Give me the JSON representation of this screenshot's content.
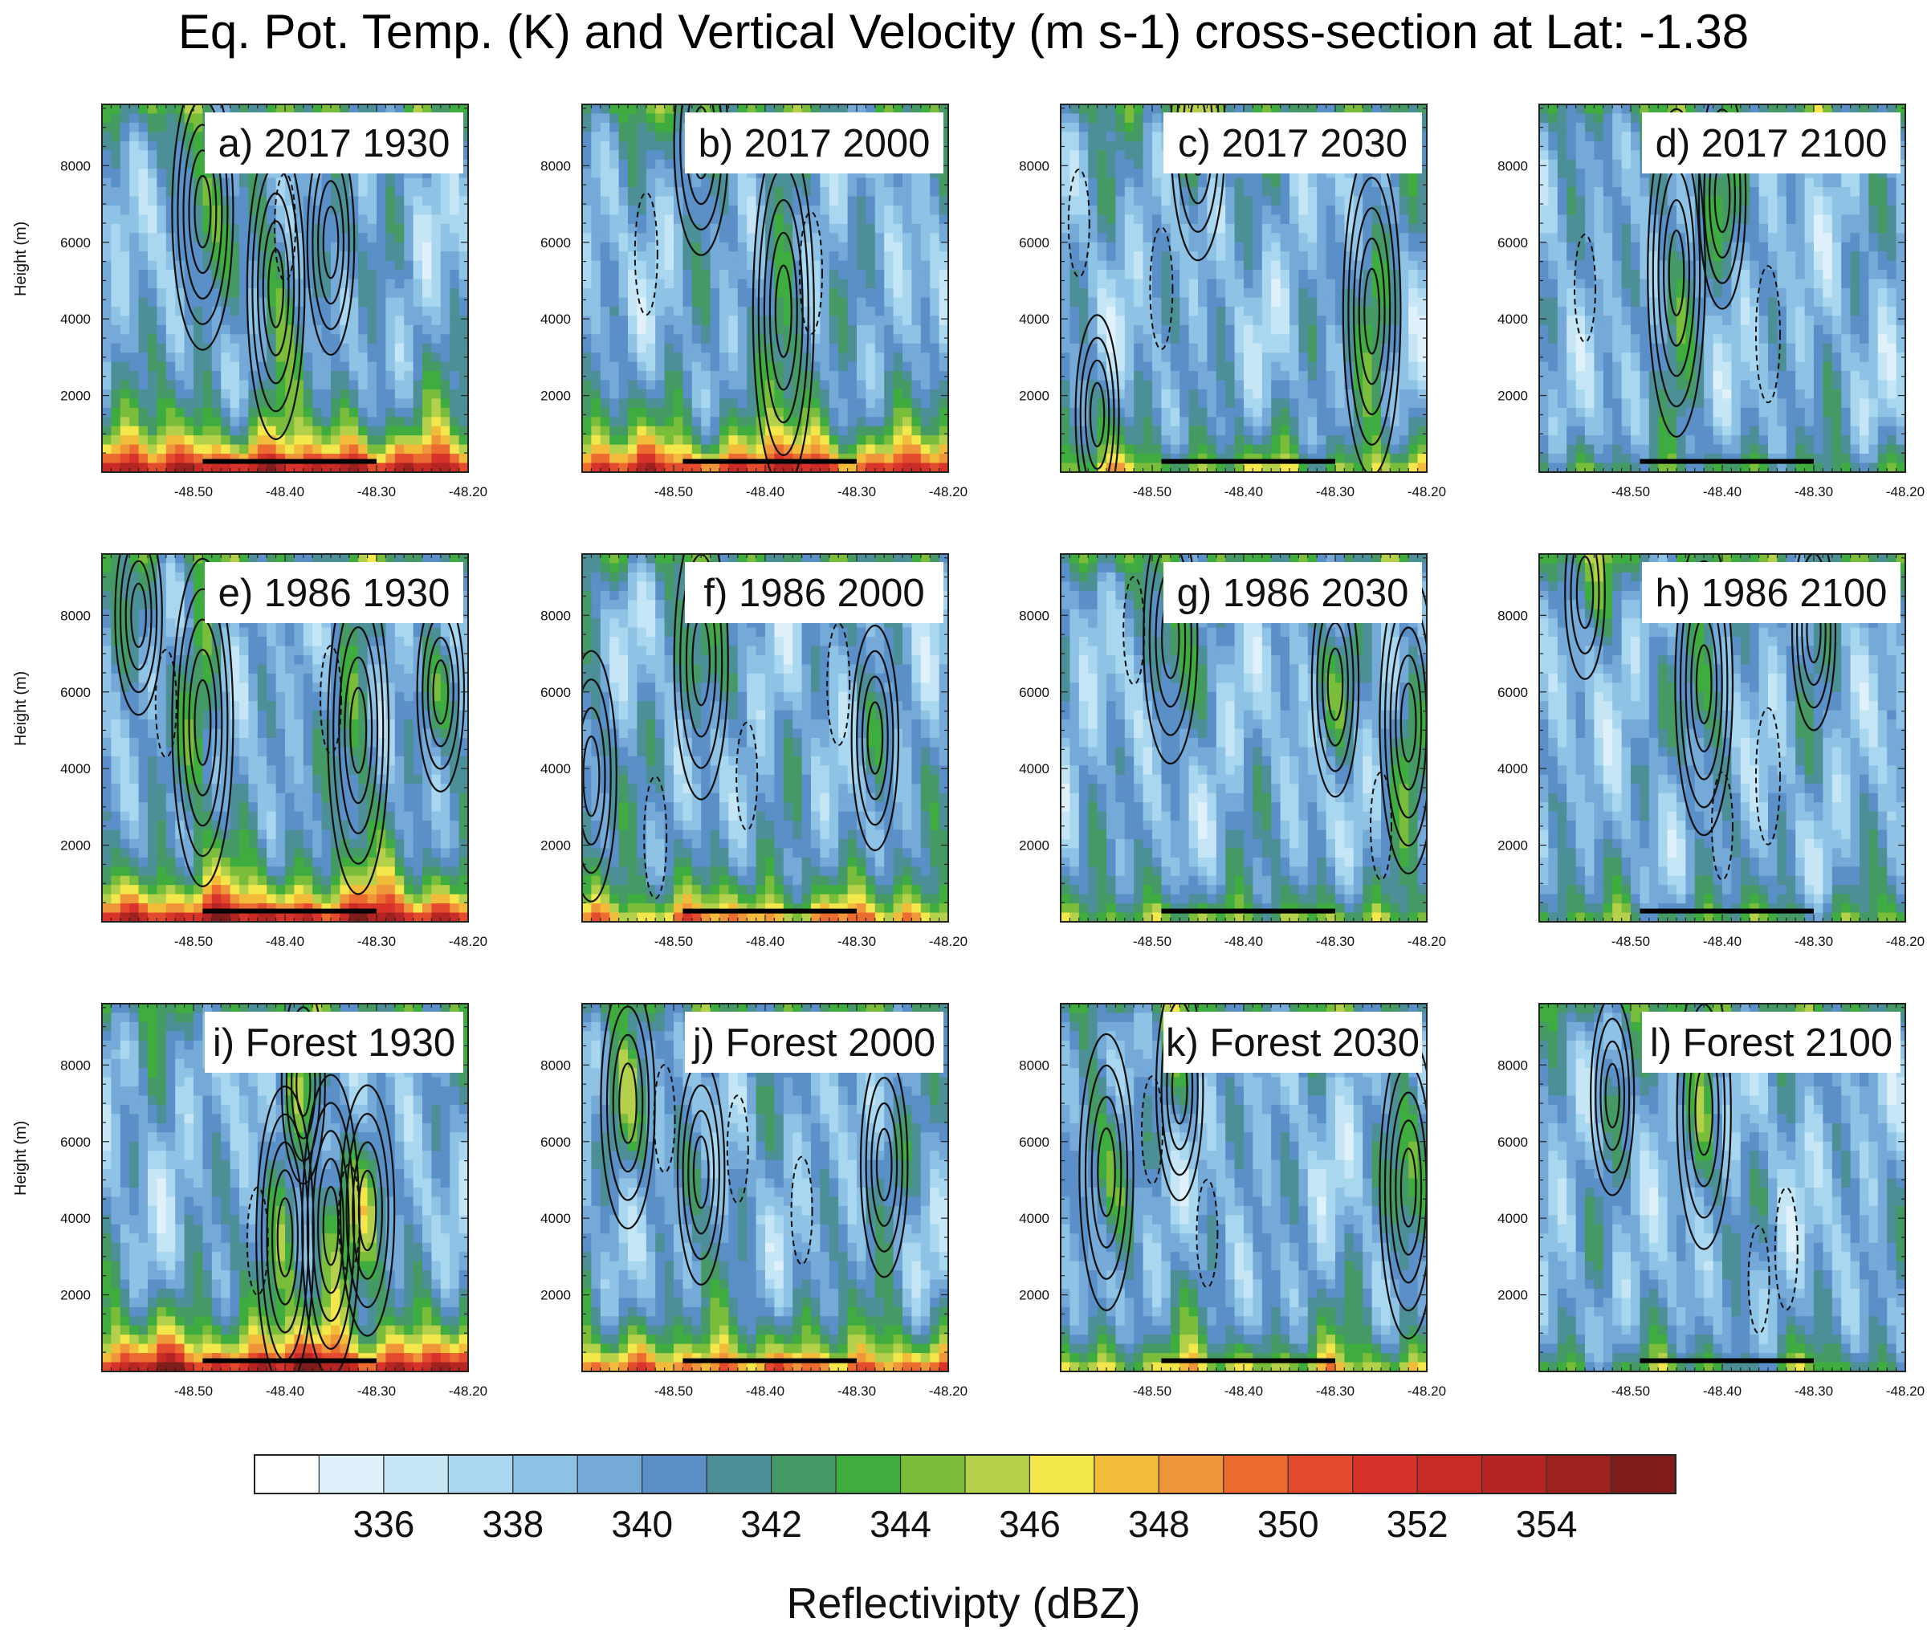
{
  "chart_data": {
    "type": "heatmap",
    "title": "Eq. Pot. Temp. (K) and Vertical Velocity (m s-1) cross-section at Lat: -1.38",
    "xlabel": "",
    "ylabel": "Height (m)",
    "xlim": [
      -48.6,
      -48.2
    ],
    "ylim": [
      0,
      9600
    ],
    "x_ticks": [
      "-48.50",
      "-48.40",
      "-48.30",
      "-48.20"
    ],
    "x_tick_values": [
      -48.5,
      -48.4,
      -48.3,
      -48.2
    ],
    "y_ticks": [
      "2000",
      "4000",
      "6000",
      "8000"
    ],
    "y_tick_values": [
      2000,
      4000,
      6000,
      8000
    ],
    "reference_segment_lon": [
      -48.49,
      -48.3
    ],
    "colorbar": {
      "label": "Reflectivipty (dBZ)",
      "tick_labels": [
        "336",
        "338",
        "340",
        "342",
        "344",
        "346",
        "348",
        "350",
        "352",
        "354"
      ],
      "levels": [
        334,
        335,
        336,
        337,
        338,
        339,
        340,
        341,
        342,
        343,
        344,
        345,
        346,
        347,
        348,
        349,
        350,
        351,
        352,
        353,
        354,
        355,
        356
      ],
      "colors": [
        "#ffffff",
        "#e1f1fb",
        "#c6e6f6",
        "#a9d7ef",
        "#8ec3e6",
        "#74a9d8",
        "#5a8fc8",
        "#4c8f96",
        "#449964",
        "#3fac3f",
        "#79bd3a",
        "#b5d04a",
        "#f3e74b",
        "#f2bc3a",
        "#f0963a",
        "#ec6b30",
        "#e44a2e",
        "#d8332a",
        "#c82a26",
        "#b32422",
        "#9c211f",
        "#7e1d1b"
      ]
    },
    "panels": [
      {
        "label": "a) 2017 1930",
        "scenario": "2017",
        "time": "1930",
        "surface_heat": 1.0,
        "updrafts": [
          [
            -48.49,
            6800,
            0.7,
            1.0
          ],
          [
            -48.41,
            4800,
            0.8,
            0.9
          ],
          [
            -48.35,
            6000,
            0.5,
            0.6
          ]
        ],
        "downdrafts": [
          [
            -48.4,
            6400,
            0.3
          ]
        ]
      },
      {
        "label": "b) 2017 2000",
        "scenario": "2017",
        "time": "2000",
        "surface_heat": 0.85,
        "updrafts": [
          [
            -48.38,
            4200,
            1.0,
            1.0
          ],
          [
            -48.47,
            8600,
            0.5,
            0.8
          ]
        ],
        "downdrafts": [
          [
            -48.53,
            5700,
            0.4
          ],
          [
            -48.35,
            5200,
            0.4
          ]
        ]
      },
      {
        "label": "c) 2017 2030",
        "scenario": "2017",
        "time": "2030",
        "surface_heat": 0.25,
        "updrafts": [
          [
            -48.26,
            4200,
            0.9,
            0.9
          ],
          [
            -48.45,
            8800,
            0.6,
            0.8
          ],
          [
            -48.56,
            1500,
            0.4,
            0.5
          ]
        ],
        "downdrafts": [
          [
            -48.49,
            4800,
            0.4
          ],
          [
            -48.58,
            6500,
            0.3
          ]
        ]
      },
      {
        "label": "d) 2017 2100",
        "scenario": "2017",
        "time": "2100",
        "surface_heat": 0.05,
        "updrafts": [
          [
            -48.45,
            5200,
            0.9,
            0.9
          ],
          [
            -48.4,
            7200,
            0.5,
            0.6
          ]
        ],
        "downdrafts": [
          [
            -48.35,
            3600,
            0.5
          ],
          [
            -48.55,
            4800,
            0.3
          ]
        ]
      },
      {
        "label": "e) 1986 1930",
        "scenario": "1986",
        "time": "1930",
        "surface_heat": 1.0,
        "updrafts": [
          [
            -48.49,
            5200,
            0.9,
            1.0
          ],
          [
            -48.32,
            5000,
            0.9,
            1.0
          ],
          [
            -48.56,
            8000,
            0.4,
            0.6
          ],
          [
            -48.23,
            6000,
            0.4,
            0.6
          ]
        ],
        "downdrafts": [
          [
            -48.53,
            5700,
            0.3
          ],
          [
            -48.35,
            5800,
            0.3
          ]
        ]
      },
      {
        "label": "f) 1986 2000",
        "scenario": "1986",
        "time": "2000",
        "surface_heat": 0.55,
        "updrafts": [
          [
            -48.47,
            6800,
            0.7,
            0.8
          ],
          [
            -48.28,
            4800,
            0.5,
            0.6
          ],
          [
            -48.59,
            3800,
            0.6,
            0.7
          ]
        ],
        "downdrafts": [
          [
            -48.52,
            2200,
            0.4
          ],
          [
            -48.32,
            6200,
            0.4
          ],
          [
            -48.42,
            3800,
            0.3
          ]
        ]
      },
      {
        "label": "g) 1986 2030",
        "scenario": "1986",
        "time": "2030",
        "surface_heat": 0.2,
        "updrafts": [
          [
            -48.48,
            7400,
            0.6,
            0.8
          ],
          [
            -48.22,
            5200,
            0.8,
            0.9
          ],
          [
            -48.3,
            6200,
            0.5,
            0.6
          ]
        ],
        "downdrafts": [
          [
            -48.52,
            7600,
            0.3
          ],
          [
            -48.25,
            2500,
            0.3
          ]
        ]
      },
      {
        "label": "h) 1986 2100",
        "scenario": "1986",
        "time": "2100",
        "surface_heat": 0.1,
        "updrafts": [
          [
            -48.42,
            6200,
            0.8,
            0.9
          ],
          [
            -48.3,
            7600,
            0.4,
            0.5
          ],
          [
            -48.55,
            8600,
            0.3,
            0.4
          ]
        ],
        "downdrafts": [
          [
            -48.35,
            3800,
            0.5
          ],
          [
            -48.4,
            2500,
            0.3
          ]
        ]
      },
      {
        "label": "i) Forest 1930",
        "scenario": "Forest",
        "time": "1930",
        "surface_heat": 1.0,
        "updrafts": [
          [
            -48.4,
            3500,
            0.8,
            0.9
          ],
          [
            -48.35,
            3800,
            0.8,
            0.9
          ],
          [
            -48.31,
            4200,
            0.6,
            0.8
          ],
          [
            -48.38,
            7500,
            0.4,
            0.5
          ]
        ],
        "downdrafts": [
          [
            -48.43,
            3400,
            0.3
          ],
          [
            -48.33,
            4000,
            0.3
          ]
        ]
      },
      {
        "label": "j) Forest 2000",
        "scenario": "Forest",
        "time": "2000",
        "surface_heat": 0.65,
        "updrafts": [
          [
            -48.55,
            7000,
            0.6,
            0.8
          ],
          [
            -48.47,
            5200,
            0.5,
            0.6
          ],
          [
            -48.27,
            5400,
            0.5,
            0.6
          ]
        ],
        "downdrafts": [
          [
            -48.51,
            6600,
            0.3
          ],
          [
            -48.43,
            5800,
            0.3
          ],
          [
            -48.36,
            4200,
            0.3
          ]
        ]
      },
      {
        "label": "k) Forest 2030",
        "scenario": "Forest",
        "time": "2030",
        "surface_heat": 0.35,
        "updrafts": [
          [
            -48.55,
            5200,
            0.7,
            0.8
          ],
          [
            -48.47,
            7400,
            0.5,
            0.6
          ],
          [
            -48.22,
            4800,
            0.8,
            0.9
          ]
        ],
        "downdrafts": [
          [
            -48.44,
            3600,
            0.3
          ],
          [
            -48.5,
            6300,
            0.3
          ]
        ]
      },
      {
        "label": "l) Forest 2100",
        "scenario": "Forest",
        "time": "2100",
        "surface_heat": 0.1,
        "updrafts": [
          [
            -48.42,
            6800,
            0.7,
            0.8
          ],
          [
            -48.52,
            7200,
            0.4,
            0.5
          ]
        ],
        "downdrafts": [
          [
            -48.33,
            3200,
            0.4
          ],
          [
            -48.36,
            2400,
            0.3
          ]
        ]
      }
    ]
  }
}
